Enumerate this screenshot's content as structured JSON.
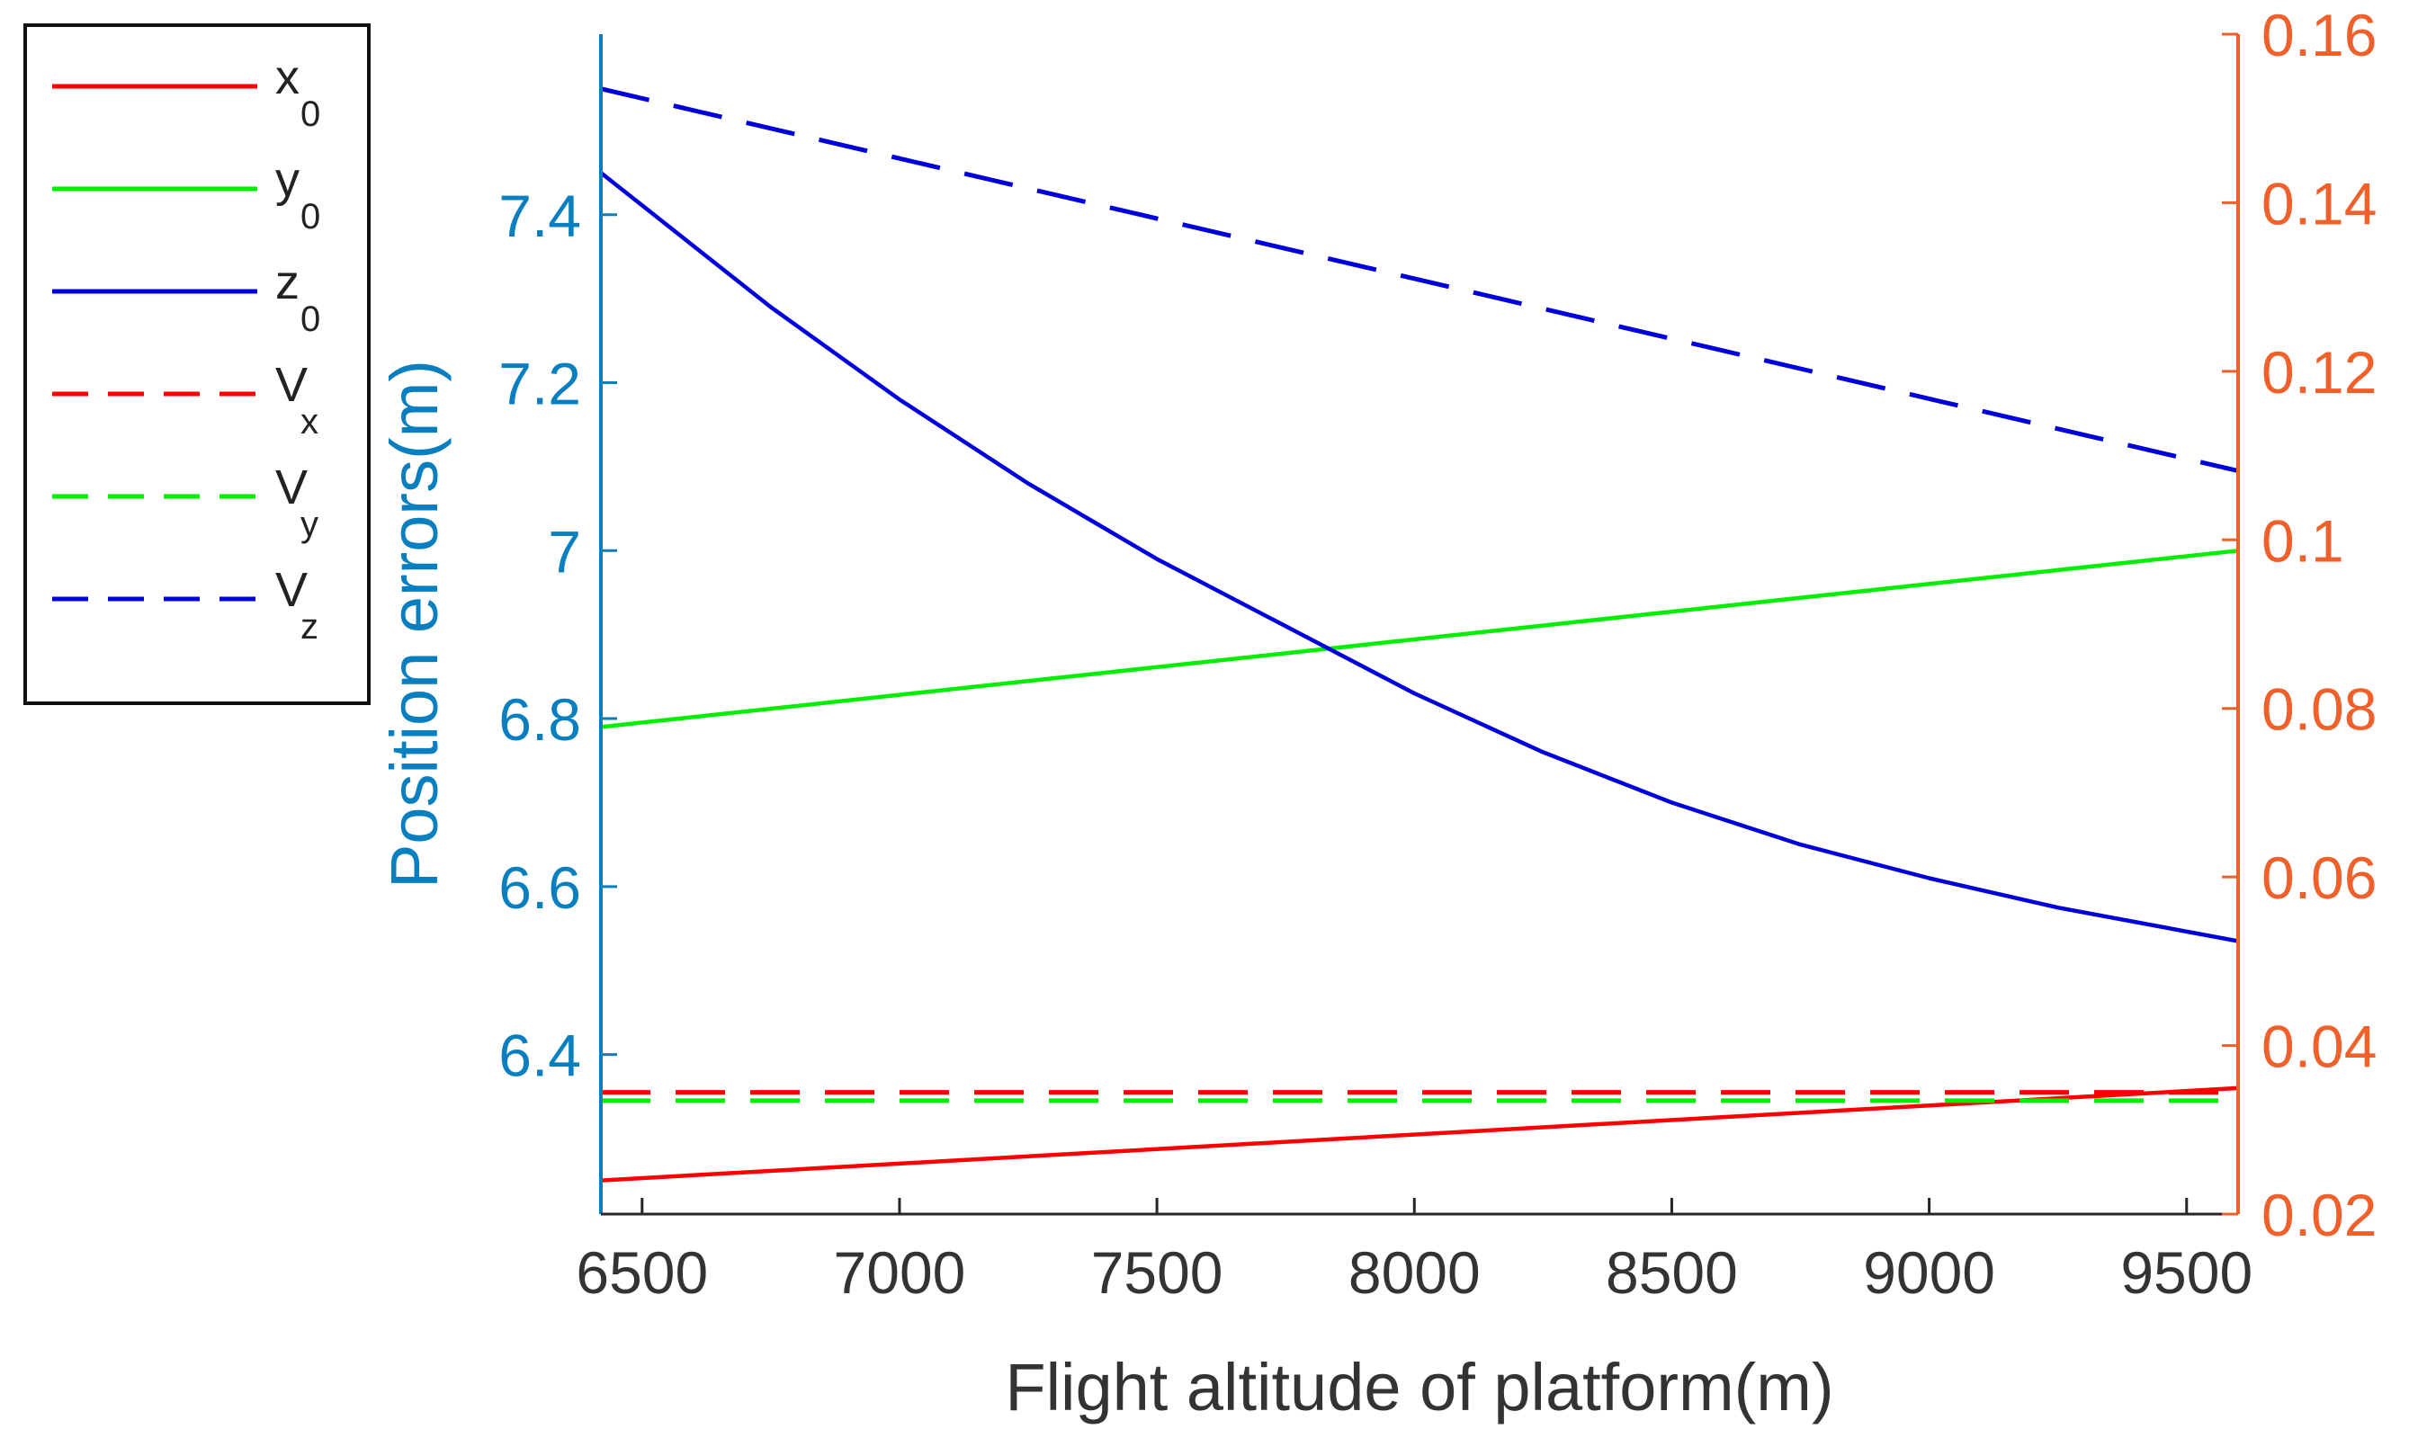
{
  "chart_data": {
    "type": "line",
    "title": "",
    "xlabel": "Flight altitude of platform(m)",
    "ylabel_left": "Position errors(m)",
    "ylabel_right": "",
    "xlim": [
      6420,
      9600
    ],
    "ylim_left": [
      6.21,
      7.615
    ],
    "ylim_right": [
      0.02,
      0.16
    ],
    "x_ticks": [
      6500,
      7000,
      7500,
      8000,
      8500,
      9000,
      9500
    ],
    "x_tick_labels": [
      "6500",
      "7000",
      "7500",
      "8000",
      "8500",
      "9000",
      "9500"
    ],
    "y_left_ticks": [
      6.4,
      6.6,
      6.8,
      7.0,
      7.2,
      7.4
    ],
    "y_left_tick_labels": [
      "6.4",
      "6.6",
      "6.8",
      "7",
      "7.2",
      "7.4"
    ],
    "y_right_ticks": [
      0.02,
      0.04,
      0.06,
      0.08,
      0.1,
      0.12,
      0.14,
      0.16
    ],
    "y_right_tick_labels": [
      "0.02",
      "0.04",
      "0.06",
      "0.08",
      "0.1",
      "0.12",
      "0.14",
      "0.16"
    ],
    "grid": false,
    "legend_position": "outside-left",
    "colors": {
      "left_axis": "#0a7fc0",
      "right_axis": "#f0602a"
    },
    "series": [
      {
        "name": "x0",
        "label_main": "x",
        "label_sub": "0",
        "axis": "left",
        "color": "#ff0000",
        "dash": false,
        "x": [
          6420,
          9600
        ],
        "y": [
          6.25,
          6.36
        ]
      },
      {
        "name": "y0",
        "label_main": "y",
        "label_sub": "0",
        "axis": "left",
        "color": "#00ee00",
        "dash": false,
        "x": [
          6420,
          9600
        ],
        "y": [
          6.79,
          7.0
        ]
      },
      {
        "name": "z0",
        "label_main": "z",
        "label_sub": "0",
        "axis": "left",
        "color": "#0000dd",
        "dash": false,
        "x": [
          6420,
          6750,
          7000,
          7250,
          7500,
          7750,
          8000,
          8250,
          8500,
          8750,
          9000,
          9250,
          9600
        ],
        "y": [
          7.45,
          7.29,
          7.18,
          7.08,
          6.99,
          6.91,
          6.83,
          6.76,
          6.7,
          6.65,
          6.61,
          6.575,
          6.535
        ]
      },
      {
        "name": "Vx",
        "label_main": "V",
        "label_sub": "x",
        "axis": "left",
        "color": "#ff0000",
        "dash": true,
        "x": [
          6420,
          9600
        ],
        "y": [
          6.355,
          6.355
        ]
      },
      {
        "name": "Vy",
        "label_main": "V",
        "label_sub": "y",
        "axis": "left",
        "color": "#00ee00",
        "dash": true,
        "x": [
          6420,
          9600
        ],
        "y": [
          6.345,
          6.345
        ]
      },
      {
        "name": "Vz",
        "label_main": "V",
        "label_sub": "z",
        "axis": "left",
        "color": "#0000dd",
        "dash": true,
        "x": [
          6420,
          9600
        ],
        "y": [
          7.55,
          7.095
        ]
      }
    ]
  }
}
